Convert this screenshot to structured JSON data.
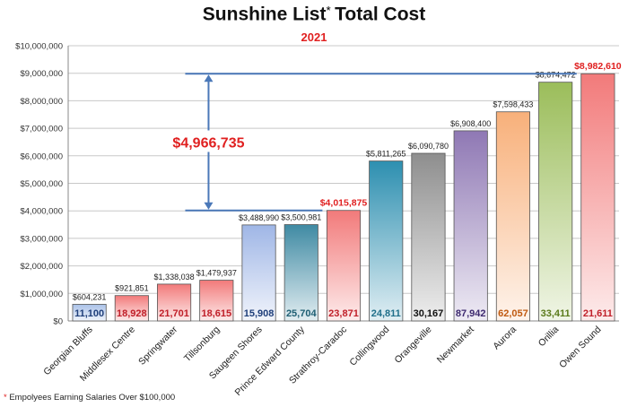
{
  "chart_data": {
    "type": "bar",
    "title": "Sunshine List",
    "title_marker": "*",
    "title_suffix": "Total Cost",
    "subtitle": "2021",
    "categories": [
      "Georgian Bluffs",
      "Middlesex Centre",
      "Springwater",
      "Tillsonburg",
      "Saugeen Shores",
      "Prince Edward County",
      "Strathroy-Caradoc",
      "Collingwood",
      "Orangeville",
      "Newmarket",
      "Aurora",
      "Orillia",
      "Owen Sound"
    ],
    "values": [
      604231,
      921851,
      1338038,
      1479937,
      3488990,
      3500981,
      4015875,
      5811265,
      6090780,
      6908400,
      7598433,
      8674472,
      8982610
    ],
    "value_labels": [
      "$604,231",
      "$921,851",
      "$1,338,038",
      "$1,479,937",
      "$3,488,990",
      "$3,500,981",
      "$4,015,875",
      "$5,811,265",
      "$6,090,780",
      "$6,908,400",
      "$7,598,433",
      "$8,674,472",
      "$8,982,610"
    ],
    "employee_counts": [
      "11,100",
      "18,928",
      "21,701",
      "18,615",
      "15,908",
      "25,704",
      "23,871",
      "24,811",
      "30,167",
      "87,942",
      "62,057",
      "33,411",
      "21,611"
    ],
    "highlighted_value_labels": [
      6,
      12
    ],
    "bar_colors": [
      "#a9c1e8",
      "#f27a7a",
      "#f27a7a",
      "#f27a7a",
      "#9fb6e6",
      "#3f8aa3",
      "#f27a7a",
      "#2d8fb0",
      "#8e8e8e",
      "#8f78b4",
      "#f8b07a",
      "#9bbd5a",
      "#f27a7a"
    ],
    "count_colors": [
      "#1f3f7a",
      "#c0202a",
      "#c0202a",
      "#c0202a",
      "#1f3f7a",
      "#1f5f73",
      "#c0202a",
      "#1f6f8a",
      "#111111",
      "#3e2a70",
      "#c05a10",
      "#5a7a1a",
      "#c0202a"
    ],
    "highlight_color": "#e02020",
    "difference_annotation": "$4,966,735",
    "annotation_line_color": "#4a78b8",
    "ylim": [
      0,
      10000000
    ],
    "yticks": [
      0,
      1000000,
      2000000,
      3000000,
      4000000,
      5000000,
      6000000,
      7000000,
      8000000,
      9000000,
      10000000
    ],
    "ytick_labels": [
      "$0",
      "$1,000,000",
      "$2,000,000",
      "$3,000,000",
      "$4,000,000",
      "$5,000,000",
      "$6,000,000",
      "$7,000,000",
      "$8,000,000",
      "$9,000,000",
      "$10,000,000"
    ],
    "grid": true,
    "footnote_marker": "*",
    "footnote": "Empolyees Earning Salaries Over $100,000"
  }
}
